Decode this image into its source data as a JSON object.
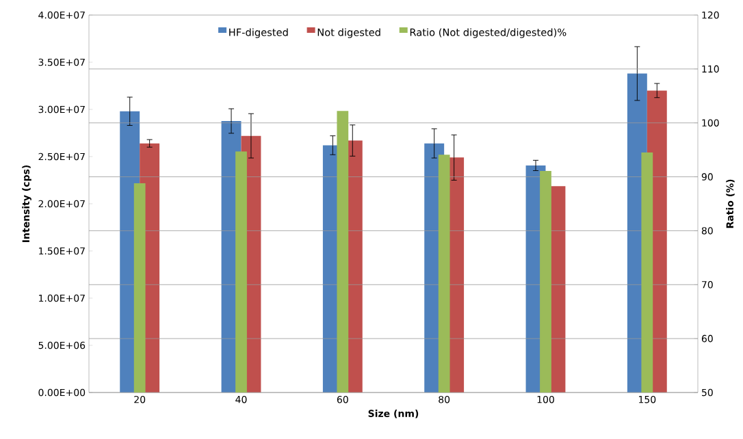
{
  "chart_data": {
    "type": "bar",
    "xlabel": "Size (nm)",
    "ylabel": "Intensity (cps)",
    "y2label": "Ratio (%)",
    "categories": [
      "20",
      "40",
      "60",
      "80",
      "100",
      "150"
    ],
    "series": [
      {
        "name": "HF-digested",
        "color": "#4f81bd",
        "values": [
          29800000,
          28770000,
          26200000,
          26400000,
          24060000,
          33800000
        ],
        "errors": [
          1500000,
          1300000,
          1000000,
          1550000,
          550000,
          2850000
        ]
      },
      {
        "name": "Not digested",
        "color": "#c0504d",
        "values": [
          26400000,
          27200000,
          26700000,
          24900000,
          21860000,
          32000000
        ],
        "errors": [
          400000,
          2350000,
          1650000,
          2400000,
          null,
          750000
        ]
      },
      {
        "name": "Ratio (Not digested/digested)%",
        "color": "#9bbb59",
        "axis": "y2",
        "values": [
          88.8,
          94.7,
          102.2,
          94.1,
          91.1,
          94.5
        ]
      }
    ],
    "ylim": [
      0,
      40000000
    ],
    "yticks": [
      {
        "value": 0,
        "label": "0.00E+00"
      },
      {
        "value": 5000000,
        "label": "5.00E+06"
      },
      {
        "value": 10000000,
        "label": "1.00E+07"
      },
      {
        "value": 15000000,
        "label": "1.50E+07"
      },
      {
        "value": 20000000,
        "label": "2.00E+07"
      },
      {
        "value": 25000000,
        "label": "2.50E+07"
      },
      {
        "value": 30000000,
        "label": "3.00E+07"
      },
      {
        "value": 35000000,
        "label": "3.50E+07"
      },
      {
        "value": 40000000,
        "label": "4.00E+07"
      }
    ],
    "y2lim": [
      50,
      120
    ],
    "y2ticks": [
      50,
      60,
      70,
      80,
      90,
      100,
      110,
      120
    ],
    "grid": "y2",
    "legend": "top"
  }
}
